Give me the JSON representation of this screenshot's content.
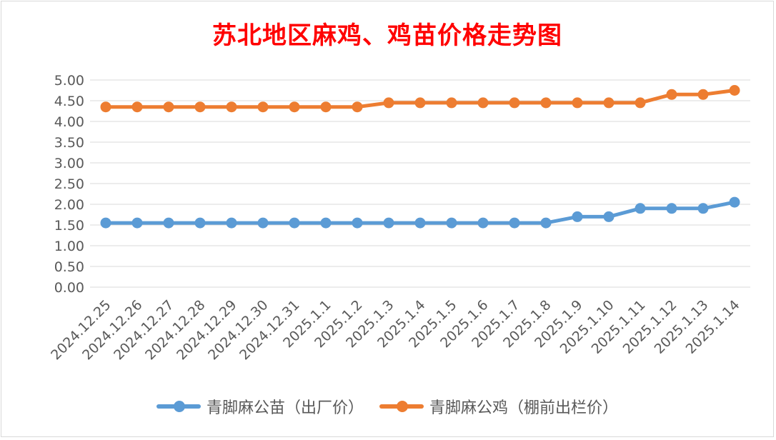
{
  "chart_data": {
    "type": "line",
    "title": "苏北地区麻鸡、鸡苗价格走势图",
    "xlabel": "",
    "ylabel": "",
    "ylim": [
      0,
      5
    ],
    "ytick_step": 0.5,
    "grid": true,
    "legend_position": "bottom",
    "categories": [
      "2024.12.25",
      "2024.12.26",
      "2024.12.27",
      "2024.12.28",
      "2024.12.29",
      "2024.12.30",
      "2024.12.31",
      "2025.1.1",
      "2025.1.2",
      "2025.1.3",
      "2025.1.4",
      "2025.1.5",
      "2025.1.6",
      "2025.1.7",
      "2025.1.8",
      "2025.1.9",
      "2025.1.10",
      "2025.1.11",
      "2025.1.12",
      "2025.1.13",
      "2025.1.14"
    ],
    "series": [
      {
        "name": "青脚麻公苗（出厂价）",
        "color": "#5b9bd5",
        "values": [
          1.55,
          1.55,
          1.55,
          1.55,
          1.55,
          1.55,
          1.55,
          1.55,
          1.55,
          1.55,
          1.55,
          1.55,
          1.55,
          1.55,
          1.55,
          1.7,
          1.7,
          1.9,
          1.9,
          1.9,
          2.05
        ]
      },
      {
        "name": "青脚麻公鸡（棚前出栏价）",
        "color": "#ed7d31",
        "values": [
          4.35,
          4.35,
          4.35,
          4.35,
          4.35,
          4.35,
          4.35,
          4.35,
          4.35,
          4.45,
          4.45,
          4.45,
          4.45,
          4.45,
          4.45,
          4.45,
          4.45,
          4.45,
          4.65,
          4.65,
          4.75
        ]
      }
    ]
  }
}
